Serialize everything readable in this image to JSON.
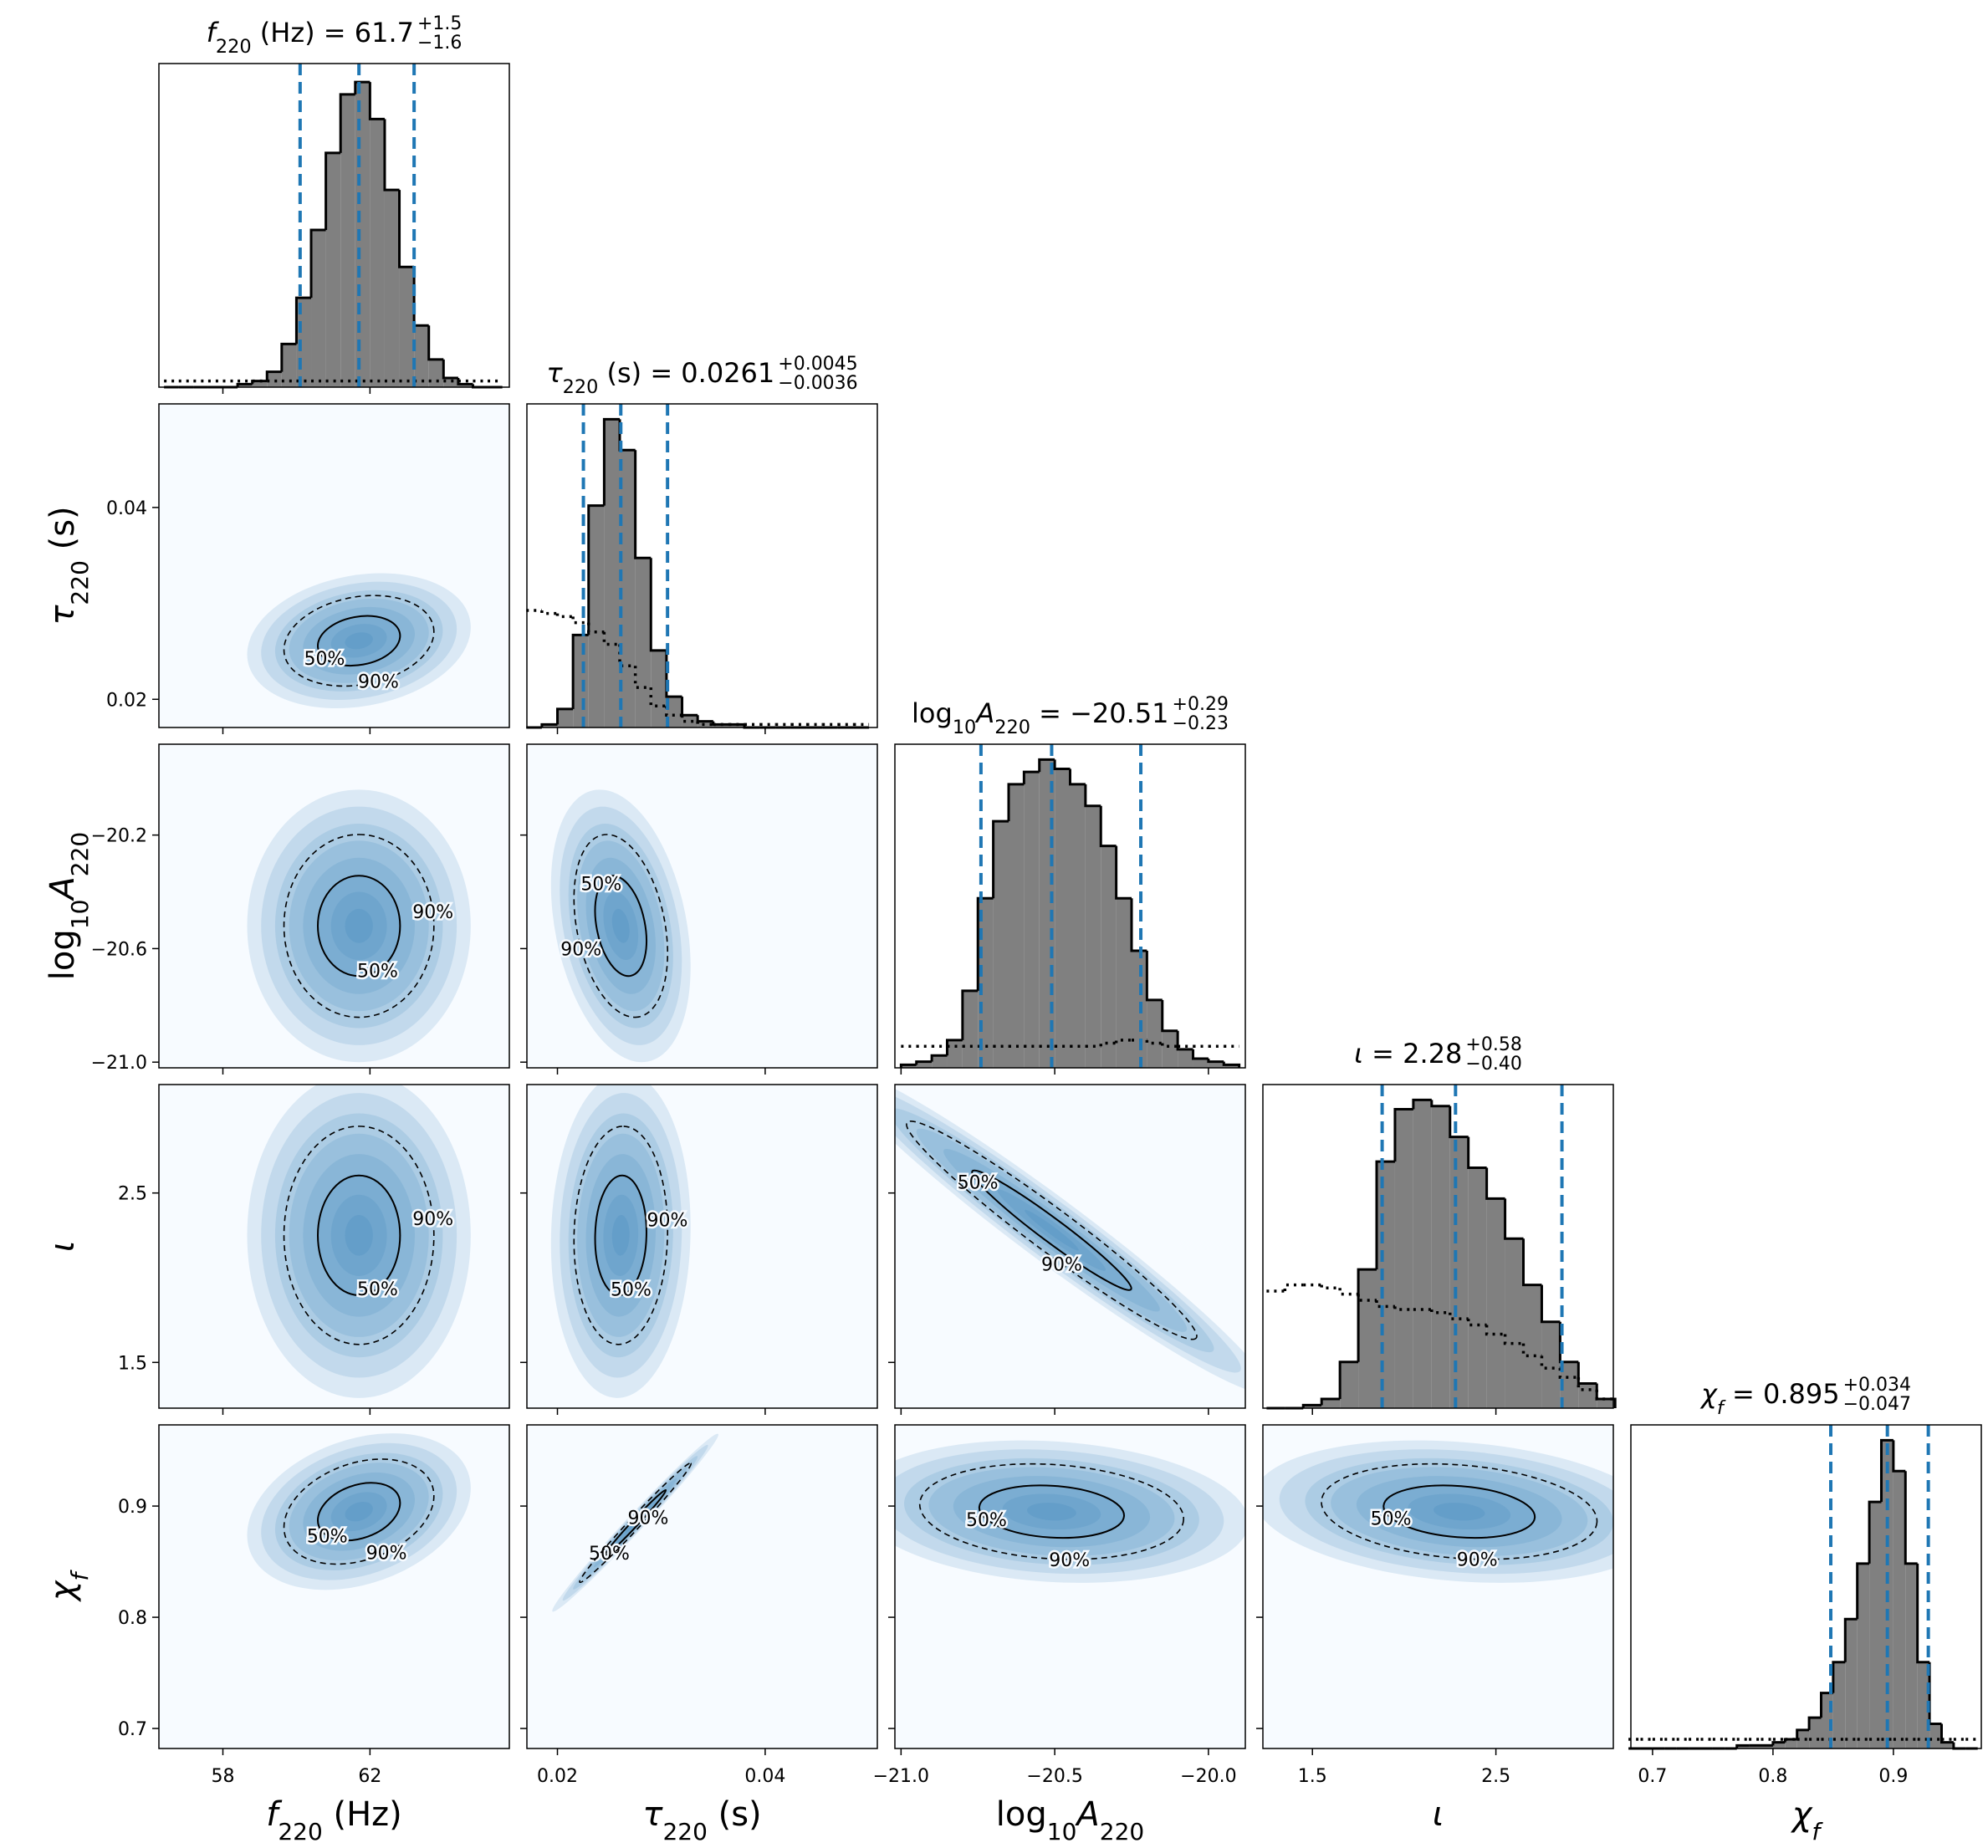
{
  "chart_data": {
    "type": "corner",
    "hist_color": "#808080",
    "quantile_color": "#1f77b4",
    "density_color": "#2171b5",
    "background": "#f7fbff",
    "hist_ylim": [
      0,
      105
    ],
    "levels": [
      {
        "value": 50,
        "label": "50%"
      },
      {
        "value": 90,
        "label": "90%"
      }
    ],
    "parameters": [
      {
        "label": [
          {
            "text": "f",
            "italic": true
          },
          {
            "text": "220",
            "sub": true
          },
          {
            "text": " (Hz)"
          }
        ],
        "title": {
          "parts": [
            {
              "text": "f",
              "italic": true
            },
            {
              "text": "220",
              "sub": true
            },
            {
              "text": " (Hz) = 61.7"
            }
          ],
          "plus": "+1.5",
          "minus": "−1.6"
        },
        "lim": [
          56.26,
          65.79
        ],
        "xticks": [
          58,
          62
        ],
        "median": 61.7,
        "lower": 60.1,
        "upper": 63.2,
        "hist": {
          "bins": [
            56.4,
            56.8,
            57.2,
            57.6,
            58.0,
            58.4,
            58.8,
            59.2,
            59.6,
            60.0,
            60.4,
            60.8,
            61.2,
            61.6,
            62.0,
            62.4,
            62.8,
            63.2,
            63.6,
            64.0,
            64.4,
            64.8,
            65.2,
            65.6
          ],
          "counts": [
            0,
            0,
            0,
            0,
            0,
            1,
            2,
            5,
            14,
            29,
            51,
            76,
            95,
            99,
            87,
            64,
            39,
            20,
            9,
            3,
            1,
            0,
            0
          ],
          "prior": [
            2,
            2,
            2,
            2,
            2,
            2,
            2,
            2,
            2,
            2,
            2,
            2,
            2,
            2,
            2,
            2,
            2,
            2,
            2,
            2,
            2,
            2,
            2
          ]
        }
      },
      {
        "label": [
          {
            "text": "τ",
            "italic": true
          },
          {
            "text": "220",
            "sub": true
          },
          {
            "text": " (s)"
          }
        ],
        "title": {
          "parts": [
            {
              "text": "τ",
              "italic": true
            },
            {
              "text": "220",
              "sub": true
            },
            {
              "text": " (s) = 0.0261"
            }
          ],
          "plus": "+0.0045",
          "minus": "−0.0036"
        },
        "lim": [
          0.01706,
          0.0508
        ],
        "xticks": [
          0.02,
          0.04
        ],
        "yticks": [
          0.02,
          0.04
        ],
        "median": 0.0261,
        "lower": 0.0225,
        "upper": 0.0306,
        "hist": {
          "bins": [
            0.017,
            0.0185,
            0.02,
            0.0215,
            0.023,
            0.0245,
            0.026,
            0.0275,
            0.029,
            0.0305,
            0.032,
            0.0335,
            0.035,
            0.0365,
            0.038,
            0.0395,
            0.041,
            0.0425,
            0.044,
            0.0455,
            0.047,
            0.0485,
            0.05
          ],
          "counts": [
            0,
            1,
            6,
            30,
            72,
            100,
            90,
            55,
            25,
            10,
            4,
            2,
            1,
            1,
            0,
            0,
            0,
            0,
            0,
            0,
            0,
            0
          ],
          "prior": [
            38,
            37,
            36,
            34,
            31,
            27,
            20,
            13,
            7,
            4,
            2,
            1,
            1,
            1,
            1,
            1,
            1,
            1,
            1,
            1,
            1,
            1
          ]
        }
      },
      {
        "label": [
          {
            "text": "log"
          },
          {
            "text": "10",
            "sub": true
          },
          {
            "text": "A",
            "italic": true
          },
          {
            "text": "220",
            "sub": true
          }
        ],
        "title": {
          "parts": [
            {
              "text": "log"
            },
            {
              "text": "10",
              "sub": true
            },
            {
              "text": "A",
              "italic": true
            },
            {
              "text": "220",
              "sub": true
            },
            {
              "text": " = −20.51"
            }
          ],
          "plus": "+0.29",
          "minus": "−0.23"
        },
        "lim": [
          -21.02,
          -19.88
        ],
        "xticks": [
          {
            "value": -21.0,
            "label": "−21.0"
          },
          {
            "value": -20.5,
            "label": "−20.5"
          },
          {
            "value": -20.0,
            "label": "−20.0"
          }
        ],
        "yticks": [
          {
            "value": -21.0,
            "label": "−21.0"
          },
          {
            "value": -20.6,
            "label": "−20.6"
          },
          {
            "value": -20.2,
            "label": "−20.2"
          }
        ],
        "median": -20.51,
        "lower": -20.74,
        "upper": -20.22,
        "hist": {
          "bins": [
            -21.0,
            -20.95,
            -20.9,
            -20.85,
            -20.8,
            -20.75,
            -20.7,
            -20.65,
            -20.6,
            -20.55,
            -20.5,
            -20.45,
            -20.4,
            -20.35,
            -20.3,
            -20.25,
            -20.2,
            -20.15,
            -20.1,
            -20.05,
            -20.0,
            -19.95,
            -19.9
          ],
          "counts": [
            1,
            2,
            4,
            9,
            25,
            55,
            80,
            92,
            96,
            100,
            97,
            92,
            85,
            72,
            55,
            38,
            22,
            12,
            6,
            3,
            2,
            1
          ],
          "prior": [
            7,
            7,
            7,
            7,
            7,
            7,
            7,
            7,
            7,
            7,
            7,
            7,
            7,
            8,
            9,
            9,
            8,
            7,
            7,
            7,
            7,
            7
          ]
        }
      },
      {
        "label": [
          {
            "text": "ι",
            "italic": true
          }
        ],
        "title": {
          "parts": [
            {
              "text": "ι",
              "italic": true
            },
            {
              "text": " = 2.28"
            }
          ],
          "plus": "+0.58",
          "minus": "−0.40"
        },
        "lim": [
          1.23,
          3.14
        ],
        "xticks": [
          1.5,
          2.5
        ],
        "yticks": [
          1.5,
          2.5
        ],
        "median": 2.28,
        "lower": 1.88,
        "upper": 2.86,
        "hist": {
          "bins": [
            1.25,
            1.35,
            1.45,
            1.55,
            1.65,
            1.75,
            1.85,
            1.95,
            2.05,
            2.15,
            2.25,
            2.35,
            2.45,
            2.55,
            2.65,
            2.75,
            2.85,
            2.95,
            3.05,
            3.15
          ],
          "counts": [
            0,
            0,
            1,
            3,
            15,
            45,
            80,
            97,
            100,
            98,
            88,
            78,
            68,
            55,
            40,
            28,
            15,
            8,
            3
          ],
          "prior": [
            38,
            40,
            40,
            39,
            37,
            35,
            33,
            32,
            32,
            31,
            29,
            27,
            24,
            21,
            17,
            13,
            10,
            6,
            3
          ]
        }
      },
      {
        "label": [
          {
            "text": "χ",
            "italic": true
          },
          {
            "text": "f",
            "sub": true,
            "italic": true
          }
        ],
        "title": {
          "parts": [
            {
              "text": "χ",
              "italic": true
            },
            {
              "text": "f",
              "sub": true,
              "italic": true
            },
            {
              "text": " = 0.895"
            }
          ],
          "plus": "+0.034",
          "minus": "−0.047"
        },
        "lim": [
          0.682,
          0.973
        ],
        "xticks": [
          0.7,
          0.8,
          0.9
        ],
        "yticks": [
          0.7,
          0.8,
          0.9
        ],
        "median": 0.895,
        "lower": 0.848,
        "upper": 0.929,
        "hist": {
          "bins": [
            0.68,
            0.69,
            0.7,
            0.71,
            0.72,
            0.73,
            0.74,
            0.75,
            0.76,
            0.77,
            0.78,
            0.79,
            0.8,
            0.81,
            0.82,
            0.83,
            0.84,
            0.85,
            0.86,
            0.87,
            0.88,
            0.89,
            0.9,
            0.91,
            0.92,
            0.93,
            0.94,
            0.95,
            0.96,
            0.97
          ],
          "counts": [
            0,
            0,
            0,
            0,
            0,
            0,
            0,
            0,
            0,
            1,
            1,
            1,
            2,
            3,
            6,
            10,
            18,
            28,
            42,
            60,
            80,
            100,
            90,
            60,
            28,
            8,
            2,
            0,
            0
          ],
          "prior": [
            3,
            3,
            3,
            3,
            3,
            3,
            3,
            3,
            3,
            3,
            3,
            3,
            3,
            3,
            3,
            3,
            3,
            3,
            3,
            3,
            3,
            3,
            3,
            3,
            3,
            3,
            3,
            3,
            3
          ]
        }
      }
    ],
    "pairs": [
      [
        {
          "mean": [
            61.7,
            0.0261
          ],
          "sd": [
            0.95,
            0.0022
          ],
          "corr": 0.2
        }
      ],
      [
        {
          "mean": [
            61.7,
            -20.52
          ],
          "sd": [
            0.95,
            0.15
          ],
          "corr": 0
        },
        {
          "mean": [
            0.0261,
            -20.52
          ],
          "sd": [
            0.0021,
            0.15
          ],
          "corr": -0.3
        }
      ],
      [
        {
          "mean": [
            61.7,
            2.25
          ],
          "sd": [
            0.95,
            0.3
          ],
          "corr": 0
        },
        {
          "mean": [
            0.0261,
            2.25
          ],
          "sd": [
            0.0021,
            0.3
          ],
          "corr": 0.05
        },
        {
          "mean": [
            -20.51,
            2.28
          ],
          "sd": [
            0.22,
            0.3
          ],
          "corr": -0.97
        }
      ],
      [
        {
          "mean": [
            61.7,
            0.895
          ],
          "sd": [
            0.95,
            0.022
          ],
          "corr": 0.3
        },
        {
          "mean": [
            0.0275,
            0.885
          ],
          "sd": [
            0.0025,
            0.025
          ],
          "corr": 0.99
        },
        {
          "mean": [
            -20.51,
            0.895
          ],
          "sd": [
            0.2,
            0.02
          ],
          "corr": -0.15
        },
        {
          "mean": [
            2.3,
            0.895
          ],
          "sd": [
            0.35,
            0.02
          ],
          "corr": -0.2
        }
      ]
    ]
  }
}
